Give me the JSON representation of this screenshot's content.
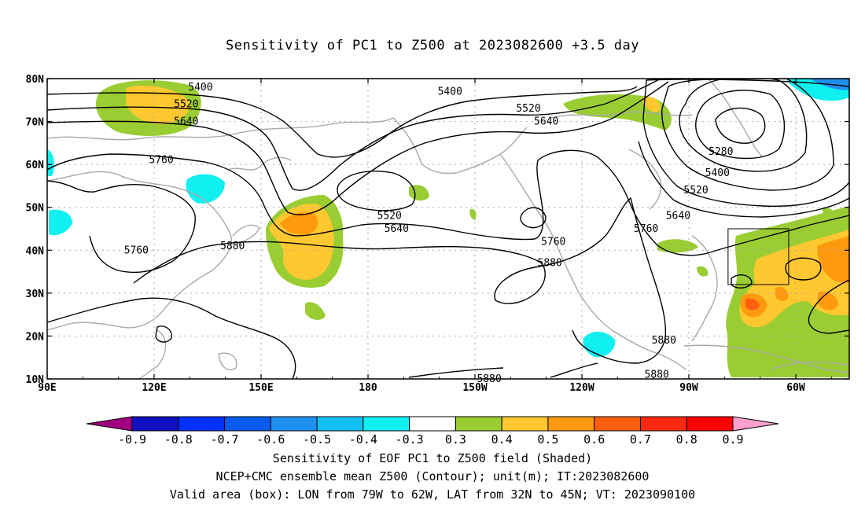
{
  "title": "Sensitivity of PC1 to Z500 at 2023082600 +3.5 day",
  "footer": {
    "line1": "Sensitivity of EOF PC1 to Z500 field (Shaded)",
    "line2": "NCEP+CMC ensemble mean Z500 (Contour); unit(m); IT:2023082600",
    "line3": "Valid area (box): LON from 79W to 62W, LAT from 32N to 45N; VT: 2023090100"
  },
  "axes": {
    "lat_labels": [
      "10N",
      "20N",
      "30N",
      "40N",
      "50N",
      "60N",
      "70N",
      "80N"
    ],
    "lat_values": [
      10,
      20,
      30,
      40,
      50,
      60,
      70,
      80
    ],
    "lon_labels": [
      "90E",
      "120E",
      "150E",
      "180",
      "150W",
      "120W",
      "90W",
      "60W"
    ],
    "lon_values": [
      90,
      120,
      150,
      180,
      210,
      240,
      270,
      300
    ],
    "lon_range": [
      90,
      315
    ],
    "lat_range": [
      10,
      80
    ],
    "grid": true
  },
  "valid_box": {
    "lon_west": -79,
    "lon_east": -62,
    "lat_south": 32,
    "lat_north": 45
  },
  "colorbar": {
    "labels": [
      "-0.9",
      "-0.8",
      "-0.7",
      "-0.6",
      "-0.5",
      "-0.4",
      "-0.3",
      "0.3",
      "0.4",
      "0.5",
      "0.6",
      "0.7",
      "0.8",
      "0.9"
    ],
    "colors": [
      "#a0007f",
      "#1010c0",
      "#0030ff",
      "#0a5cf0",
      "#1e90f0",
      "#10c0f0",
      "#10f0f0",
      "#ffffff",
      "#9acd32",
      "#ffc830",
      "#ff9a10",
      "#ff6010",
      "#ff2a10",
      "#ff0000",
      "#ffa0d0"
    ]
  },
  "contour_labels": [
    {
      "text": "5400",
      "lon": 133,
      "lat": 78
    },
    {
      "text": "5520",
      "lon": 129,
      "lat": 74
    },
    {
      "text": "5640",
      "lon": 129,
      "lat": 70
    },
    {
      "text": "5760",
      "lon": 122,
      "lat": 61
    },
    {
      "text": "5760",
      "lon": 115,
      "lat": 40
    },
    {
      "text": "5880",
      "lon": 142,
      "lat": 41
    },
    {
      "text": "5400",
      "lon": 203,
      "lat": 77
    },
    {
      "text": "5520",
      "lon": 225,
      "lat": 73
    },
    {
      "text": "5640",
      "lon": 230,
      "lat": 70
    },
    {
      "text": "5520",
      "lon": 186,
      "lat": 48
    },
    {
      "text": "5640",
      "lon": 188,
      "lat": 45
    },
    {
      "text": "5760",
      "lon": 232,
      "lat": 42
    },
    {
      "text": "5880",
      "lon": 231,
      "lat": 37
    },
    {
      "text": "5880",
      "lon": 214,
      "lat": 10
    },
    {
      "text": "5880",
      "lon": 261,
      "lat": 11
    },
    {
      "text": "5880",
      "lon": 263,
      "lat": 19
    },
    {
      "text": "5280",
      "lon": 279,
      "lat": 63
    },
    {
      "text": "5400",
      "lon": 278,
      "lat": 58
    },
    {
      "text": "5520",
      "lon": 272,
      "lat": 54
    },
    {
      "text": "5640",
      "lon": 267,
      "lat": 48
    },
    {
      "text": "5760",
      "lon": 258,
      "lat": 45
    }
  ]
}
